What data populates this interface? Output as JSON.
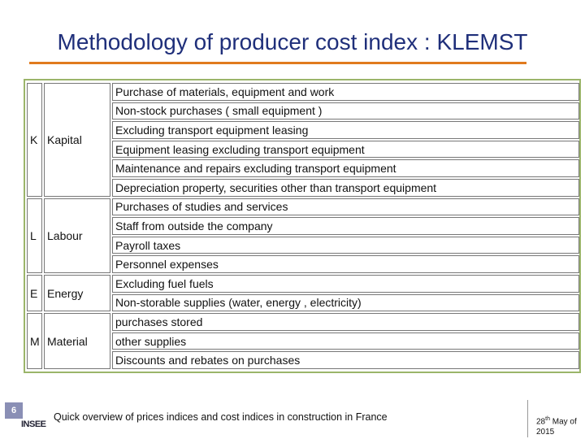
{
  "header": {
    "title": "Methodology of producer cost index : KLEMST"
  },
  "table": {
    "groups": [
      {
        "letter": "K",
        "name": "Kapital",
        "items": [
          "Purchase of materials, equipment and work",
          "Non-stock purchases ( small equipment )",
          "Excluding transport equipment leasing",
          "Equipment leasing excluding transport equipment",
          "Maintenance and repairs excluding transport equipment",
          "Depreciation property, securities other than transport equipment"
        ]
      },
      {
        "letter": "L",
        "name": "Labour",
        "items": [
          "Purchases of studies and services",
          "Staff from outside the company",
          "Payroll taxes",
          "Personnel expenses"
        ]
      },
      {
        "letter": "E",
        "name": "Energy",
        "items": [
          "Excluding fuel fuels",
          "Non-storable supplies (water, energy , electricity)"
        ]
      },
      {
        "letter": "M",
        "name": "Material",
        "items": [
          "purchases stored",
          "other supplies",
          "Discounts and rebates on purchases"
        ]
      }
    ]
  },
  "footer": {
    "page": "6",
    "logo": "INSEE",
    "text": "Quick overview of prices indices and cost indices in construction in France",
    "date": {
      "day": "28",
      "suffix": "th",
      "rest": "May of 2015"
    }
  }
}
